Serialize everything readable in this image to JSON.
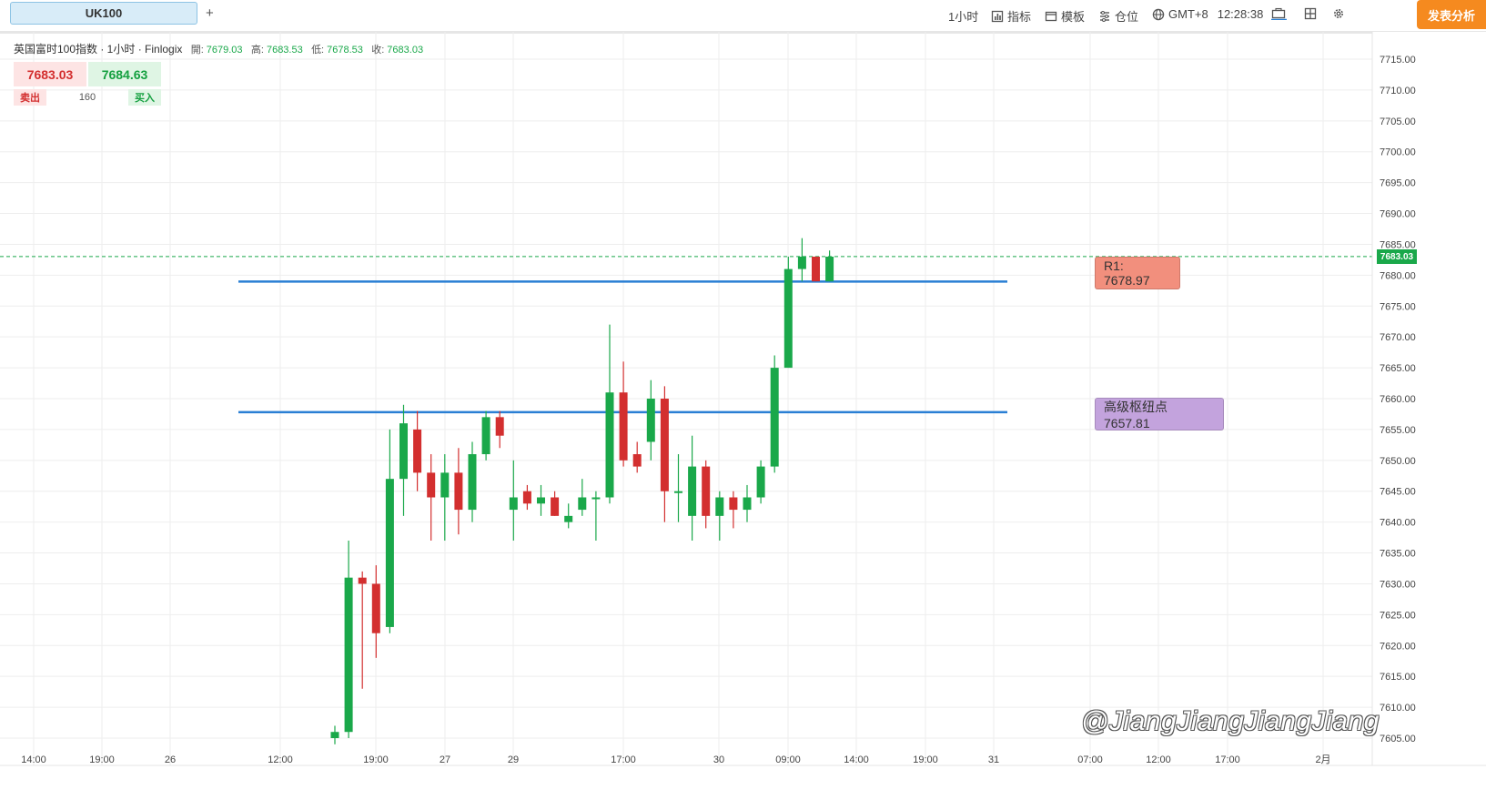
{
  "toolbar": {
    "symbol": "UK100",
    "add_tab": "+",
    "timeframe": "1小时",
    "indicators": "指标",
    "templates": "模板",
    "positions": "仓位",
    "timezone": "GMT+8",
    "clock": "12:28:38",
    "publish": "发表分析"
  },
  "legend": {
    "title": "英国富时100指数 · 1小时 · Finlogix",
    "open_label": "開:",
    "open": "7679.03",
    "high_label": "高:",
    "high": "7683.53",
    "low_label": "低:",
    "low": "7678.53",
    "close_label": "收:",
    "close": "7683.03"
  },
  "trade": {
    "sell_price": "7683.03",
    "buy_price": "7684.63",
    "sell_label": "卖出",
    "quantity": "160",
    "buy_label": "买入"
  },
  "levels": {
    "r1_label": "R1: 7678.97",
    "pivot_label": "高级枢纽点 7657.81"
  },
  "watermark": "@JiangJiangJiangJiang",
  "colors": {
    "up": "#1aa84a",
    "down": "#d32f2f",
    "level_line": "#2a7fd4",
    "publish": "#f58a1f"
  },
  "chart_data": {
    "type": "candlestick",
    "symbol": "UK100",
    "ylim": [
      7605,
      7717
    ],
    "y_ticks": [
      "7715.00",
      "7710.00",
      "7705.00",
      "7700.00",
      "7695.00",
      "7690.00",
      "7685.00",
      "7680.00",
      "7675.00",
      "7670.00",
      "7665.00",
      "7660.00",
      "7655.00",
      "7650.00",
      "7645.00",
      "7640.00",
      "7635.00",
      "7630.00",
      "7625.00",
      "7620.00",
      "7615.00",
      "7610.00",
      "7605.00"
    ],
    "x_ticks": [
      "14:00",
      "19:00",
      "26",
      "12:00",
      "19:00",
      "27",
      "29",
      "17:00",
      "30",
      "09:00",
      "14:00",
      "19:00",
      "31",
      "07:00",
      "12:00",
      "17:00",
      "2月"
    ],
    "last_price": "7683.03",
    "horizontal_levels": [
      {
        "name": "R1",
        "value": 7678.97
      },
      {
        "name": "高级枢纽点",
        "value": 7657.81
      }
    ],
    "candles": [
      {
        "o": 7605,
        "h": 7607,
        "l": 7604,
        "c": 7606
      },
      {
        "o": 7606,
        "h": 7637,
        "l": 7605,
        "c": 7631
      },
      {
        "o": 7631,
        "h": 7632,
        "l": 7613,
        "c": 7630
      },
      {
        "o": 7630,
        "h": 7633,
        "l": 7618,
        "c": 7622
      },
      {
        "o": 7623,
        "h": 7655,
        "l": 7622,
        "c": 7647
      },
      {
        "o": 7647,
        "h": 7659,
        "l": 7641,
        "c": 7656
      },
      {
        "o": 7655,
        "h": 7658,
        "l": 7645,
        "c": 7648
      },
      {
        "o": 7648,
        "h": 7651,
        "l": 7637,
        "c": 7644
      },
      {
        "o": 7644,
        "h": 7651,
        "l": 7637,
        "c": 7648
      },
      {
        "o": 7648,
        "h": 7652,
        "l": 7638,
        "c": 7642
      },
      {
        "o": 7642,
        "h": 7653,
        "l": 7640,
        "c": 7651
      },
      {
        "o": 7651,
        "h": 7658,
        "l": 7650,
        "c": 7657
      },
      {
        "o": 7657,
        "h": 7658,
        "l": 7652,
        "c": 7654
      },
      {
        "o": 7642,
        "h": 7650,
        "l": 7637,
        "c": 7644
      },
      {
        "o": 7645,
        "h": 7646,
        "l": 7642,
        "c": 7643
      },
      {
        "o": 7643,
        "h": 7646,
        "l": 7641,
        "c": 7644
      },
      {
        "o": 7644,
        "h": 7645,
        "l": 7641,
        "c": 7641
      },
      {
        "o": 7640,
        "h": 7643,
        "l": 7639,
        "c": 7641
      },
      {
        "o": 7642,
        "h": 7647,
        "l": 7641,
        "c": 7644
      },
      {
        "o": 7644,
        "h": 7645,
        "l": 7637,
        "c": 7644
      },
      {
        "o": 7644,
        "h": 7672,
        "l": 7643,
        "c": 7661
      },
      {
        "o": 7661,
        "h": 7666,
        "l": 7649,
        "c": 7650
      },
      {
        "o": 7651,
        "h": 7653,
        "l": 7648,
        "c": 7649
      },
      {
        "o": 7653,
        "h": 7663,
        "l": 7650,
        "c": 7660
      },
      {
        "o": 7660,
        "h": 7662,
        "l": 7640,
        "c": 7645
      },
      {
        "o": 7645,
        "h": 7651,
        "l": 7640,
        "c": 7645
      },
      {
        "o": 7641,
        "h": 7654,
        "l": 7637,
        "c": 7649
      },
      {
        "o": 7649,
        "h": 7650,
        "l": 7639,
        "c": 7641
      },
      {
        "o": 7641,
        "h": 7645,
        "l": 7637,
        "c": 7644
      },
      {
        "o": 7644,
        "h": 7645,
        "l": 7639,
        "c": 7642
      },
      {
        "o": 7642,
        "h": 7646,
        "l": 7640,
        "c": 7644
      },
      {
        "o": 7644,
        "h": 7650,
        "l": 7643,
        "c": 7649
      },
      {
        "o": 7649,
        "h": 7667,
        "l": 7648,
        "c": 7665
      },
      {
        "o": 7665,
        "h": 7683,
        "l": 7665,
        "c": 7681
      },
      {
        "o": 7681,
        "h": 7686,
        "l": 7679,
        "c": 7683
      },
      {
        "o": 7683,
        "h": 7683,
        "l": 7679,
        "c": 7679
      },
      {
        "o": 7679,
        "h": 7684,
        "l": 7679,
        "c": 7683
      }
    ]
  }
}
